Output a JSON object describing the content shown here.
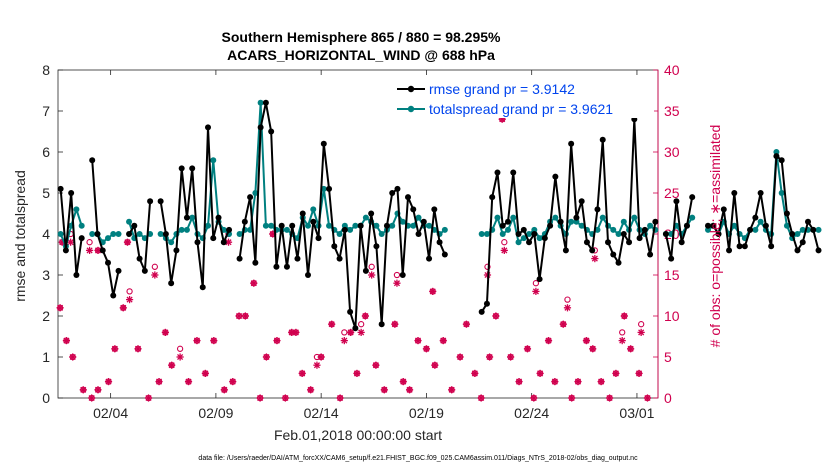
{
  "chart_data": {
    "type": "line",
    "title_line1": "Southern Hemisphere 865 / 880 = 98.295%",
    "title_line2": "ACARS_HORIZONTAL_WIND @ 688 hPa",
    "xlabel": "Feb.01,2018 00:00:00 start",
    "ylabel_left": "rmse and totalspread",
    "ylabel_right": "# of obs: o=possible; ∗=assimilated",
    "footnote": "data file: /Users/raeder/DAI/ATM_forcXX/CAM6_setup/f.e21.FHIST_BGC.f09_025.CAM6assim.011/Diags_NTrS_2018-02/obs_diag_output.nc",
    "x_range_days": [
      0,
      28.5
    ],
    "xticks": [
      {
        "day": 2.5,
        "label": "02/04"
      },
      {
        "day": 7.5,
        "label": "02/09"
      },
      {
        "day": 12.5,
        "label": "02/14"
      },
      {
        "day": 17.5,
        "label": "02/19"
      },
      {
        "day": 22.5,
        "label": "02/24"
      },
      {
        "day": 27.5,
        "label": "03/01"
      }
    ],
    "ylim_left": [
      0,
      8
    ],
    "yticks_left": [
      "0",
      "1",
      "2",
      "3",
      "4",
      "5",
      "6",
      "7",
      "8"
    ],
    "ylim_right": [
      0,
      40
    ],
    "yticks_right": [
      "0",
      "5",
      "10",
      "15",
      "20",
      "25",
      "30",
      "35",
      "40"
    ],
    "series": [
      {
        "name": "rmse grand pr = 3.9142",
        "color": "#000000",
        "values": [
          5.1,
          3.6,
          5.0,
          3.0,
          3.9,
          null,
          5.8,
          4.0,
          3.6,
          3.3,
          2.5,
          3.1,
          null,
          4.0,
          4.2,
          3.4,
          3.1,
          4.8,
          null,
          4.8,
          4.0,
          2.8,
          3.6,
          5.6,
          4.4,
          5.6,
          3.8,
          2.7,
          6.6,
          3.9,
          4.4,
          3.8,
          4.1,
          null,
          3.4,
          4.3,
          4.9,
          3.3,
          6.6,
          7.2,
          6.5,
          3.2,
          4.2,
          3.2,
          4.2,
          3.4,
          4.5,
          3.0,
          4.3,
          3.9,
          6.2,
          5.1,
          3.7,
          3.4,
          4.1,
          2.1,
          1.7,
          4.2,
          3.1,
          4.5,
          3.7,
          1.8,
          4.2,
          5.0,
          5.1,
          3.0,
          4.9,
          4.6,
          4.0,
          4.3,
          3.4,
          4.6,
          3.8,
          3.5,
          null,
          null,
          null,
          null,
          null,
          null,
          2.1,
          2.3,
          4.9,
          5.5,
          4.2,
          4.3,
          5.5,
          4.0,
          4.1,
          3.8,
          4.0,
          2.9,
          3.9,
          4.2,
          5.4,
          4.3,
          3.6,
          6.2,
          4.4,
          4.8,
          3.8,
          3.6,
          4.6,
          6.3,
          3.8,
          3.5,
          3.3,
          4.0,
          3.8,
          6.8,
          3.9,
          4.1,
          3.5,
          4.3,
          null,
          4.0,
          3.4,
          4.8,
          3.8,
          4.2,
          4.9,
          null,
          null,
          4.2,
          4.2,
          4.0,
          4.6,
          3.6,
          5.0,
          3.7,
          3.7,
          4.1,
          4.4,
          5.0,
          4.2,
          3.7,
          5.9,
          5.8,
          4.5,
          4.0,
          3.6,
          3.8,
          4.3,
          4.1,
          3.6
        ],
        "x_start": 0.125,
        "x_step": 0.25
      },
      {
        "name": "totalspread grand pr = 3.9621",
        "color": "#008080",
        "values": [
          4.0,
          3.7,
          4.2,
          4.6,
          4.2,
          null,
          4.0,
          4.0,
          3.8,
          3.9,
          4.0,
          4.0,
          null,
          4.3,
          3.9,
          4.0,
          3.9,
          4.0,
          null,
          4.0,
          3.9,
          3.8,
          4.0,
          4.1,
          4.1,
          4.4,
          4.0,
          3.9,
          4.2,
          5.8,
          4.3,
          4.1,
          4.0,
          null,
          4.0,
          4.1,
          4.1,
          5.0,
          7.2,
          4.2,
          4.2,
          4.1,
          4.1,
          4.1,
          4.0,
          3.9,
          4.4,
          4.2,
          4.6,
          4.2,
          5.1,
          4.2,
          4.1,
          4.0,
          4.2,
          4.1,
          4.2,
          4.2,
          4.4,
          4.3,
          4.2,
          4.0,
          4.1,
          4.2,
          4.5,
          4.3,
          4.2,
          4.2,
          4.4,
          4.2,
          4.2,
          4.1,
          4.0,
          4.1,
          null,
          null,
          null,
          null,
          null,
          null,
          4.0,
          4.0,
          4.1,
          4.4,
          4.0,
          4.1,
          4.4,
          3.8,
          3.9,
          4.0,
          4.1,
          3.9,
          4.0,
          4.3,
          4.4,
          4.2,
          4.0,
          4.3,
          4.3,
          4.2,
          4.1,
          4.0,
          4.1,
          4.4,
          4.2,
          4.1,
          4.0,
          4.3,
          4.1,
          4.4,
          4.1,
          4.0,
          4.2,
          4.1,
          null,
          4.0,
          4.0,
          4.2,
          4.0,
          4.2,
          4.4,
          null,
          null,
          4.1,
          4.2,
          4.0,
          4.3,
          4.0,
          4.2,
          4.0,
          3.9,
          4.1,
          4.1,
          4.3,
          4.1,
          4.0,
          6.0,
          5.0,
          4.2,
          3.9,
          4.0,
          4.1,
          4.1,
          4.1,
          4.1
        ],
        "x_start": 0.125,
        "x_step": 0.25
      }
    ],
    "obs_possible": [
      {
        "day": 0.2,
        "n": 19
      },
      {
        "day": 0.6,
        "n": 20
      },
      {
        "day": 1.5,
        "n": 19
      },
      {
        "day": 1.9,
        "n": 18
      },
      {
        "day": 3.3,
        "n": 19
      },
      {
        "day": 3.4,
        "n": 13
      },
      {
        "day": 4.6,
        "n": 16
      },
      {
        "day": 5.8,
        "n": 6
      },
      {
        "day": 8.1,
        "n": 20
      },
      {
        "day": 10.2,
        "n": 20
      },
      {
        "day": 11.1,
        "n": 8
      },
      {
        "day": 12.3,
        "n": 5
      },
      {
        "day": 13.6,
        "n": 8
      },
      {
        "day": 14.4,
        "n": 9
      },
      {
        "day": 14.9,
        "n": 16
      },
      {
        "day": 16.1,
        "n": 15
      },
      {
        "day": 17.8,
        "n": 13
      },
      {
        "day": 20.4,
        "n": 16
      },
      {
        "day": 21.2,
        "n": 19
      },
      {
        "day": 22.7,
        "n": 14
      },
      {
        "day": 24.2,
        "n": 12
      },
      {
        "day": 25.5,
        "n": 18
      },
      {
        "day": 26.8,
        "n": 8
      },
      {
        "day": 27.7,
        "n": 9
      }
    ],
    "obs_assimilated": [
      {
        "day": 0.2,
        "n": 19
      },
      {
        "day": 0.6,
        "n": 19
      },
      {
        "day": 1.5,
        "n": 18
      },
      {
        "day": 1.9,
        "n": 18
      },
      {
        "day": 3.3,
        "n": 19
      },
      {
        "day": 3.4,
        "n": 12
      },
      {
        "day": 4.6,
        "n": 15
      },
      {
        "day": 5.8,
        "n": 5
      },
      {
        "day": 8.1,
        "n": 19
      },
      {
        "day": 10.2,
        "n": 20
      },
      {
        "day": 11.1,
        "n": 8
      },
      {
        "day": 12.3,
        "n": 4
      },
      {
        "day": 13.6,
        "n": 7
      },
      {
        "day": 14.4,
        "n": 8
      },
      {
        "day": 14.9,
        "n": 15
      },
      {
        "day": 16.1,
        "n": 14
      },
      {
        "day": 17.8,
        "n": 13
      },
      {
        "day": 20.4,
        "n": 15
      },
      {
        "day": 21.2,
        "n": 18
      },
      {
        "day": 22.7,
        "n": 13
      },
      {
        "day": 24.2,
        "n": 11
      },
      {
        "day": 25.5,
        "n": 17
      },
      {
        "day": 26.8,
        "n": 7
      },
      {
        "day": 27.7,
        "n": 8
      }
    ],
    "obs_both": [
      {
        "day": 0.1,
        "n": 11
      },
      {
        "day": 0.4,
        "n": 7
      },
      {
        "day": 0.7,
        "n": 5
      },
      {
        "day": 1.2,
        "n": 1
      },
      {
        "day": 1.6,
        "n": 0
      },
      {
        "day": 1.9,
        "n": 1
      },
      {
        "day": 2.4,
        "n": 2
      },
      {
        "day": 2.7,
        "n": 6
      },
      {
        "day": 3.1,
        "n": 11
      },
      {
        "day": 3.8,
        "n": 6
      },
      {
        "day": 4.3,
        "n": 0
      },
      {
        "day": 4.8,
        "n": 2
      },
      {
        "day": 5.1,
        "n": 8
      },
      {
        "day": 5.4,
        "n": 4
      },
      {
        "day": 6.2,
        "n": 2
      },
      {
        "day": 6.6,
        "n": 7
      },
      {
        "day": 7.0,
        "n": 3
      },
      {
        "day": 7.4,
        "n": 7
      },
      {
        "day": 7.9,
        "n": 1
      },
      {
        "day": 8.3,
        "n": 2
      },
      {
        "day": 8.6,
        "n": 10
      },
      {
        "day": 8.9,
        "n": 10
      },
      {
        "day": 9.3,
        "n": 14
      },
      {
        "day": 9.6,
        "n": 0
      },
      {
        "day": 9.9,
        "n": 5
      },
      {
        "day": 10.4,
        "n": 7
      },
      {
        "day": 10.8,
        "n": 0
      },
      {
        "day": 11.3,
        "n": 8
      },
      {
        "day": 11.6,
        "n": 3
      },
      {
        "day": 12.0,
        "n": 1
      },
      {
        "day": 12.5,
        "n": 5
      },
      {
        "day": 13.0,
        "n": 9
      },
      {
        "day": 13.4,
        "n": 0
      },
      {
        "day": 13.9,
        "n": 8
      },
      {
        "day": 14.2,
        "n": 3
      },
      {
        "day": 14.6,
        "n": 10
      },
      {
        "day": 15.1,
        "n": 4
      },
      {
        "day": 15.5,
        "n": 1
      },
      {
        "day": 16.0,
        "n": 9
      },
      {
        "day": 16.4,
        "n": 2
      },
      {
        "day": 16.7,
        "n": 1
      },
      {
        "day": 17.1,
        "n": 7
      },
      {
        "day": 17.5,
        "n": 6
      },
      {
        "day": 17.9,
        "n": 4
      },
      {
        "day": 18.3,
        "n": 7
      },
      {
        "day": 18.7,
        "n": 1
      },
      {
        "day": 19.1,
        "n": 5
      },
      {
        "day": 19.4,
        "n": 9
      },
      {
        "day": 19.8,
        "n": 3
      },
      {
        "day": 20.1,
        "n": 0
      },
      {
        "day": 20.5,
        "n": 5
      },
      {
        "day": 20.8,
        "n": 10
      },
      {
        "day": 21.1,
        "n": 34
      },
      {
        "day": 21.5,
        "n": 5
      },
      {
        "day": 21.9,
        "n": 2
      },
      {
        "day": 22.3,
        "n": 6
      },
      {
        "day": 22.6,
        "n": 0
      },
      {
        "day": 22.9,
        "n": 3
      },
      {
        "day": 23.3,
        "n": 7
      },
      {
        "day": 23.6,
        "n": 2
      },
      {
        "day": 24.0,
        "n": 9
      },
      {
        "day": 24.4,
        "n": 0
      },
      {
        "day": 24.7,
        "n": 2
      },
      {
        "day": 25.1,
        "n": 7
      },
      {
        "day": 25.4,
        "n": 6
      },
      {
        "day": 25.8,
        "n": 2
      },
      {
        "day": 26.2,
        "n": 0
      },
      {
        "day": 26.5,
        "n": 3
      },
      {
        "day": 26.9,
        "n": 10
      },
      {
        "day": 27.2,
        "n": 6
      },
      {
        "day": 27.6,
        "n": 3
      },
      {
        "day": 28.0,
        "n": 0
      }
    ]
  }
}
